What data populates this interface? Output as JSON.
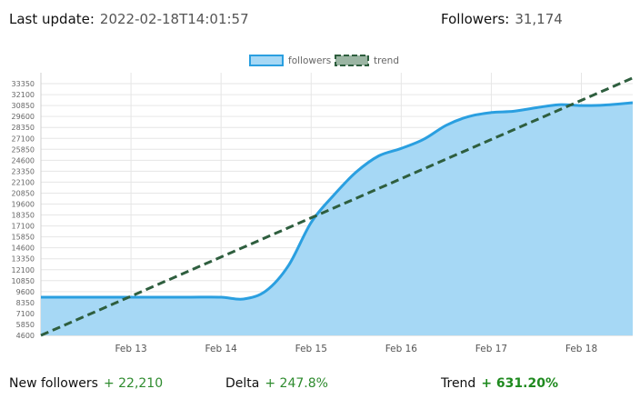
{
  "header": {
    "last_update_label": "Last update:",
    "last_update_value": "2022-02-18T14:01:57",
    "followers_label": "Followers:",
    "followers_value": "31,174"
  },
  "footer": {
    "new_followers_label": "New followers",
    "new_followers_value": "+ 22,210",
    "delta_label": "Delta",
    "delta_value": "+ 247.8%",
    "trend_label": "Trend",
    "trend_value": "+ 631.20%"
  },
  "colors": {
    "area_fill": "#a6d8f5",
    "line": "#2a9fe0",
    "trend": "#2e5e3e",
    "grid": "#e6e6e6"
  },
  "chart_data": {
    "type": "area",
    "legend_position": "top-center",
    "grid": true,
    "xlim": [
      12.0,
      18.57
    ],
    "ylim": [
      4600,
      34600
    ],
    "x_ticks": [
      {
        "x": 13,
        "label": "Feb 13"
      },
      {
        "x": 14,
        "label": "Feb 14"
      },
      {
        "x": 15,
        "label": "Feb 15"
      },
      {
        "x": 16,
        "label": "Feb 16"
      },
      {
        "x": 17,
        "label": "Feb 17"
      },
      {
        "x": 18,
        "label": "Feb 18"
      }
    ],
    "y_ticks": [
      4600,
      5850,
      7100,
      8350,
      9600,
      10850,
      12100,
      13350,
      14600,
      15850,
      17100,
      18350,
      19600,
      20850,
      22100,
      23350,
      24600,
      25850,
      27100,
      28350,
      29600,
      30850,
      32100,
      33350
    ],
    "series": [
      {
        "name": "followers",
        "x": [
          12.0,
          12.33,
          12.66,
          13.0,
          13.33,
          13.66,
          14.0,
          14.25,
          14.5,
          14.75,
          15.0,
          15.25,
          15.5,
          15.75,
          16.0,
          16.25,
          16.5,
          16.75,
          17.0,
          17.25,
          17.5,
          17.75,
          18.0,
          18.25,
          18.57
        ],
        "y": [
          8960,
          8960,
          8960,
          8960,
          8960,
          8960,
          8960,
          8750,
          9700,
          12600,
          17500,
          20600,
          23250,
          25100,
          25950,
          27000,
          28600,
          29600,
          30050,
          30200,
          30600,
          30950,
          30850,
          30900,
          31174
        ]
      },
      {
        "name": "trend",
        "x": [
          12.0,
          18.57
        ],
        "y": [
          4600,
          34000
        ]
      }
    ]
  }
}
